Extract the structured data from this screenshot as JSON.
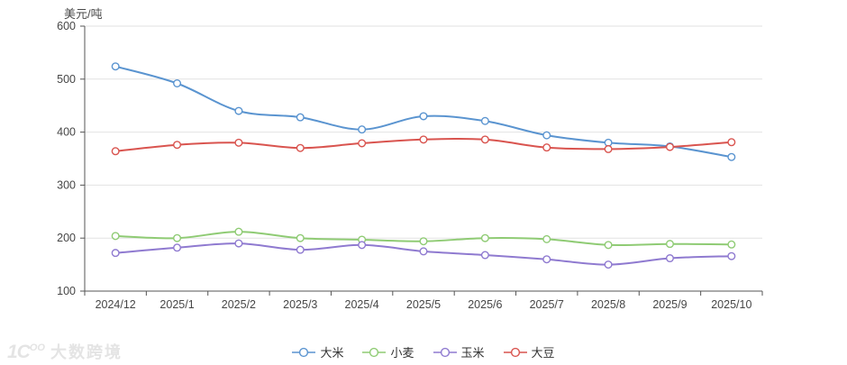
{
  "watermark": {
    "logo_main": "1C",
    "logo_sup": "OO",
    "text": "大数跨境"
  },
  "chart_data": {
    "type": "line",
    "title": "",
    "ylabel": "美元/吨",
    "xlabel": "",
    "x": [
      "2024/12",
      "2025/1",
      "2025/2",
      "2025/3",
      "2025/4",
      "2025/5",
      "2025/6",
      "2025/7",
      "2025/8",
      "2025/9",
      "2025/10"
    ],
    "series": [
      {
        "key": "rice",
        "name": "大米",
        "color": "#5a94d0",
        "values": [
          524,
          492,
          440,
          428,
          405,
          430,
          421,
          394,
          380,
          373,
          353
        ]
      },
      {
        "key": "wheat",
        "name": "小麦",
        "color": "#8fcb74",
        "values": [
          204,
          200,
          212,
          200,
          197,
          194,
          200,
          198,
          187,
          189,
          188
        ]
      },
      {
        "key": "corn",
        "name": "玉米",
        "color": "#8f7ad0",
        "values": [
          172,
          182,
          190,
          178,
          187,
          175,
          168,
          160,
          150,
          162,
          166
        ]
      },
      {
        "key": "soybean",
        "name": "大豆",
        "color": "#d9544f",
        "values": [
          364,
          376,
          380,
          370,
          379,
          386,
          386,
          371,
          368,
          372,
          381
        ]
      }
    ],
    "ylim": [
      100,
      600
    ],
    "y_ticks": [
      100,
      200,
      300,
      400,
      500,
      600
    ],
    "grid": true,
    "smooth": true,
    "legend_position": "bottom",
    "colors": {
      "axis": "#555555",
      "grid": "#e2e2e2",
      "tick_label": "#464646",
      "marker_fill": "#ffffff"
    }
  }
}
